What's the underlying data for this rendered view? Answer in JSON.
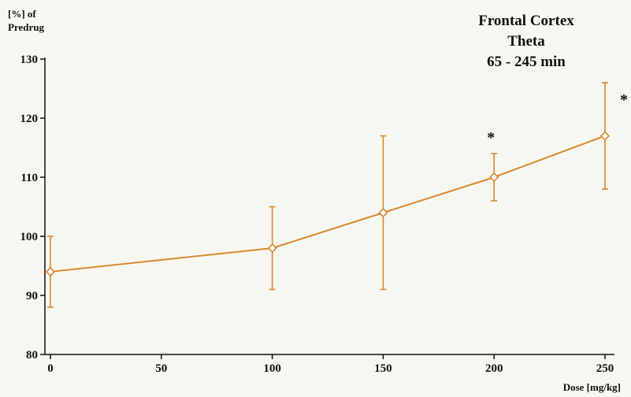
{
  "chart_data": {
    "type": "line",
    "title_lines": [
      "Frontal Cortex",
      "Theta",
      "65 - 245 min"
    ],
    "ylabel_lines": [
      "[%] of",
      "Predrug"
    ],
    "xlabel": "Dose [mg/kg]",
    "x_tick_labels": [
      "0",
      "50",
      "100",
      "150",
      "200",
      "250"
    ],
    "y_ticks": [
      80,
      90,
      100,
      110,
      120,
      130
    ],
    "xlim": [
      0,
      250
    ],
    "ylim": [
      80,
      130
    ],
    "grid": false,
    "series": [
      {
        "color": "#d9882e",
        "marker": "diamond-open",
        "points": [
          {
            "x": 0,
            "y": 94,
            "err_low": 88,
            "err_high": 100,
            "sig": ""
          },
          {
            "x": 100,
            "y": 98,
            "err_low": 91,
            "err_high": 105,
            "sig": ""
          },
          {
            "x": 150,
            "y": 104,
            "err_low": 91,
            "err_high": 117,
            "sig": ""
          },
          {
            "x": 200,
            "y": 110,
            "err_low": 106,
            "err_high": 114,
            "sig": "*"
          },
          {
            "x": 250,
            "y": 117,
            "err_low": 108,
            "err_high": 126,
            "sig": "*"
          }
        ]
      }
    ]
  }
}
